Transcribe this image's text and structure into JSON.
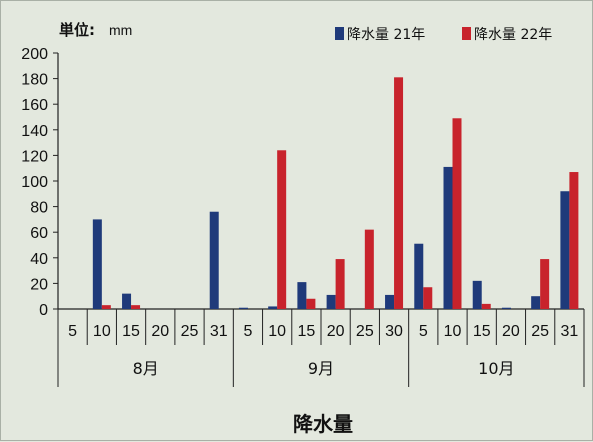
{
  "chart_data": {
    "type": "bar",
    "title": "降水量",
    "unit_label": "単位:",
    "unit_value": "mm",
    "categories": [
      "5",
      "10",
      "15",
      "20",
      "25",
      "31",
      "5",
      "10",
      "15",
      "20",
      "25",
      "30",
      "5",
      "10",
      "15",
      "20",
      "25",
      "31"
    ],
    "groups": [
      {
        "label": "8月",
        "count": 6
      },
      {
        "label": "9月",
        "count": 6
      },
      {
        "label": "10月",
        "count": 6
      }
    ],
    "series": [
      {
        "name": "降水量 21年",
        "color": "#1f3a7a",
        "values": [
          0,
          70,
          12,
          0,
          0,
          76,
          1,
          2,
          21,
          11,
          0,
          11,
          51,
          111,
          22,
          1,
          10,
          92
        ]
      },
      {
        "name": "降水量 22年",
        "color": "#c8232c",
        "values": [
          0,
          3,
          3,
          0,
          0,
          0,
          0,
          124,
          8,
          39,
          62,
          181,
          17,
          149,
          4,
          0,
          39,
          107
        ]
      }
    ],
    "ylim": [
      0,
      200
    ],
    "yticks": [
      0,
      20,
      40,
      60,
      80,
      100,
      120,
      140,
      160,
      180,
      200
    ],
    "grid": false,
    "legend_position": "top-right",
    "background": "#e3e8de",
    "axis_color": "#222222"
  }
}
